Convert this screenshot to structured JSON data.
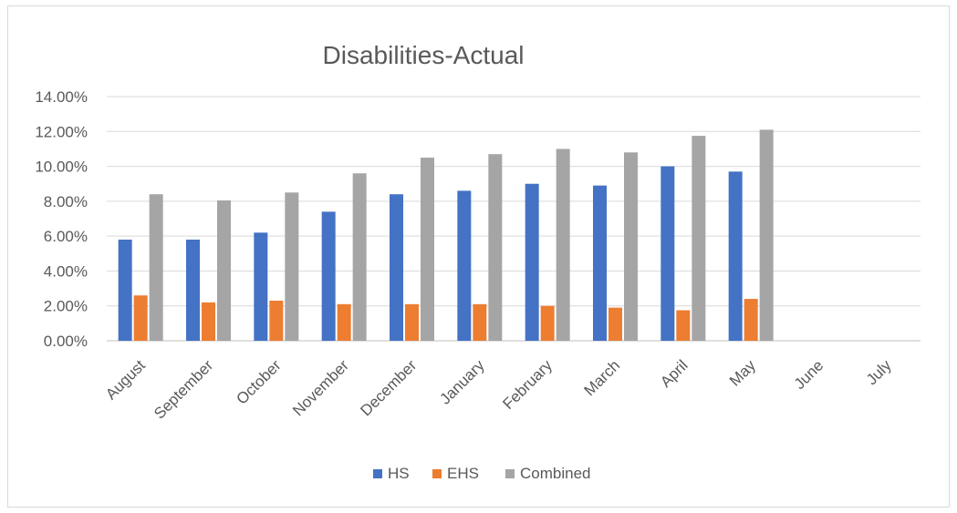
{
  "chart_data": {
    "type": "bar",
    "title": "Disabilities-Actual",
    "categories": [
      "August",
      "September",
      "October",
      "November",
      "December",
      "January",
      "February",
      "March",
      "April",
      "May",
      "June",
      "July"
    ],
    "series": [
      {
        "name": "HS",
        "color": "#4472c4",
        "values": [
          5.8,
          5.8,
          6.2,
          7.4,
          8.4,
          8.6,
          9.0,
          8.9,
          10.0,
          9.7,
          null,
          null
        ]
      },
      {
        "name": "EHS",
        "color": "#ed7d31",
        "values": [
          2.6,
          2.2,
          2.3,
          2.1,
          2.1,
          2.1,
          2.0,
          1.9,
          1.75,
          2.4,
          null,
          null
        ]
      },
      {
        "name": "Combined",
        "color": "#a5a5a5",
        "values": [
          8.4,
          8.05,
          8.5,
          9.6,
          10.5,
          10.7,
          11.0,
          10.8,
          11.75,
          12.1,
          null,
          null
        ]
      }
    ],
    "ylim": [
      0,
      14
    ],
    "yticks": [
      "0.00%",
      "2.00%",
      "4.00%",
      "6.00%",
      "8.00%",
      "10.00%",
      "12.00%",
      "14.00%"
    ],
    "grid": true,
    "legend": "bottom",
    "xlabel": "",
    "ylabel": ""
  }
}
